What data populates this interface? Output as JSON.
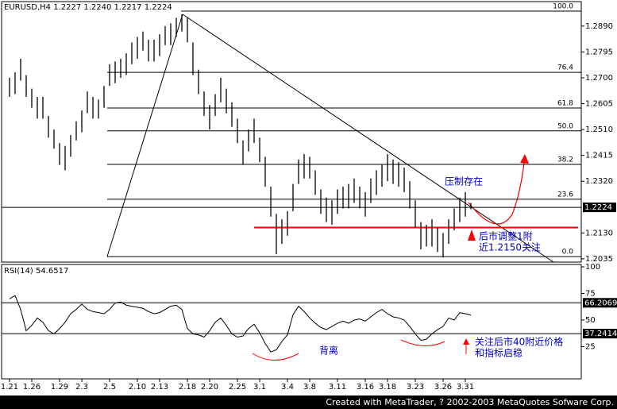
{
  "chart_data": [
    {
      "type": "ohlc",
      "title": "EURUSD,H4  1.2227 1.2240 1.2217 1.2224",
      "color": "#000000",
      "categories": [
        "1.21",
        null,
        null,
        null,
        "1.26",
        null,
        null,
        null,
        null,
        "1.29",
        null,
        null,
        null,
        "2.3",
        null,
        null,
        null,
        null,
        "2.5",
        null,
        null,
        null,
        null,
        "2.10",
        null,
        null,
        null,
        "2.13",
        null,
        null,
        null,
        null,
        "2.18",
        null,
        null,
        null,
        "2.20",
        null,
        null,
        null,
        null,
        "2.25",
        null,
        null,
        null,
        "3.1",
        null,
        null,
        null,
        null,
        "3.4",
        null,
        null,
        null,
        "3.8",
        null,
        null,
        null,
        null,
        "3.11",
        null,
        null,
        null,
        null,
        "3.16",
        null,
        null,
        null,
        "3.18",
        null,
        null,
        null,
        null,
        "3.23",
        null,
        null,
        null,
        null,
        "3.26",
        null,
        null,
        null,
        "3.31",
        null
      ],
      "high": [
        1.27,
        1.272,
        1.277,
        1.271,
        1.266,
        1.263,
        1.263,
        1.256,
        1.251,
        1.246,
        1.245,
        1.249,
        1.254,
        1.258,
        1.265,
        1.263,
        1.262,
        1.267,
        1.275,
        1.276,
        1.277,
        1.279,
        1.283,
        1.285,
        1.287,
        1.284,
        1.284,
        1.286,
        1.289,
        1.29,
        1.292,
        1.2933,
        1.292,
        1.283,
        1.273,
        1.265,
        1.26,
        1.264,
        1.27,
        1.266,
        1.261,
        1.255,
        1.247,
        1.251,
        1.255,
        1.248,
        1.241,
        1.23,
        1.22,
        1.218,
        1.221,
        1.231,
        1.24,
        1.242,
        1.241,
        1.236,
        1.229,
        1.226,
        1.225,
        1.229,
        1.23,
        1.231,
        1.233,
        1.23,
        1.228,
        1.233,
        1.236,
        1.238,
        1.242,
        1.24,
        1.239,
        1.237,
        1.232,
        1.225,
        1.217,
        1.216,
        1.218,
        1.215,
        1.213,
        1.218,
        1.222,
        1.226,
        1.228,
        1.224
      ],
      "low": [
        1.263,
        1.264,
        1.269,
        1.263,
        1.259,
        1.255,
        1.255,
        1.248,
        1.244,
        1.238,
        1.236,
        1.241,
        1.247,
        1.25,
        1.257,
        1.255,
        1.255,
        1.259,
        1.267,
        1.268,
        1.27,
        1.271,
        1.275,
        1.277,
        1.28,
        1.276,
        1.276,
        1.278,
        1.282,
        1.282,
        1.285,
        1.287,
        1.283,
        1.271,
        1.264,
        1.256,
        1.251,
        1.256,
        1.261,
        1.257,
        1.252,
        1.246,
        1.238,
        1.243,
        1.246,
        1.239,
        1.23,
        1.219,
        1.2052,
        1.209,
        1.212,
        1.221,
        1.231,
        1.233,
        1.233,
        1.227,
        1.22,
        1.217,
        1.216,
        1.22,
        1.222,
        1.222,
        1.224,
        1.222,
        1.219,
        1.224,
        1.227,
        1.23,
        1.232,
        1.231,
        1.23,
        1.228,
        1.222,
        1.215,
        1.207,
        1.208,
        1.208,
        1.206,
        1.204,
        1.209,
        1.214,
        1.217,
        1.219,
        1.2217
      ],
      "ylim": [
        1.2023,
        1.298
      ],
      "yticks": [
        {
          "value": 1.289,
          "label": "1.2890"
        },
        {
          "value": 1.2795,
          "label": "1.2795"
        },
        {
          "value": 1.27,
          "label": "1.2700"
        },
        {
          "value": 1.2605,
          "label": "1.2605"
        },
        {
          "value": 1.251,
          "label": "1.2510"
        },
        {
          "value": 1.2415,
          "label": "1.2415"
        },
        {
          "value": 1.232,
          "label": "1.2320"
        },
        {
          "value": 1.213,
          "label": "1.2130"
        },
        {
          "value": 1.2035,
          "label": "1.2035"
        }
      ],
      "last_price": {
        "value": 1.2224,
        "label": "1.2224"
      },
      "support": {
        "value": 1.215,
        "color": "#ff0000"
      },
      "fib_levels": [
        {
          "ratio": "100.0",
          "price": 1.2945
        },
        {
          "ratio": "76.4",
          "price": 1.272
        },
        {
          "ratio": "61.8",
          "price": 1.2589
        },
        {
          "ratio": "50.0",
          "price": 1.2505
        },
        {
          "ratio": "38.2",
          "price": 1.2382
        },
        {
          "ratio": "23.6",
          "price": 1.2254
        },
        {
          "ratio": "0.0",
          "price": 1.2043
        }
      ],
      "annotations": [
        "压制存在",
        "后市调整1附",
        "近1.2150关注"
      ]
    },
    {
      "type": "line",
      "title": "RSI(14) 54.6517",
      "color": "#000000",
      "values": [
        70,
        73,
        60,
        40,
        45,
        52,
        48,
        40,
        37,
        42,
        48,
        56,
        60,
        65,
        60,
        58,
        57,
        56,
        60,
        66,
        67,
        64,
        63,
        62,
        61,
        58,
        56,
        57,
        60,
        63,
        64,
        60,
        42,
        37,
        36,
        34,
        40,
        48,
        52,
        45,
        37,
        34,
        35,
        42,
        46,
        38,
        28,
        20,
        22,
        30,
        36,
        55,
        63,
        58,
        52,
        47,
        43,
        41,
        44,
        47,
        49,
        47,
        50,
        51,
        49,
        53,
        57,
        60,
        56,
        53,
        52,
        50,
        44,
        37,
        31,
        32,
        37,
        41,
        44,
        52,
        50,
        57,
        56,
        54.6517
      ],
      "ylim": [
        0,
        100
      ],
      "yticks": [
        100,
        75,
        50,
        25
      ],
      "levels": [
        66.2069,
        37.2414
      ],
      "annotations": [
        "背离",
        "关注后市40附近价格",
        "和指标启稳"
      ]
    }
  ],
  "footer": "Created with MetaTrader, ? 2002-2003 MetaQuotes Sofware Corp."
}
